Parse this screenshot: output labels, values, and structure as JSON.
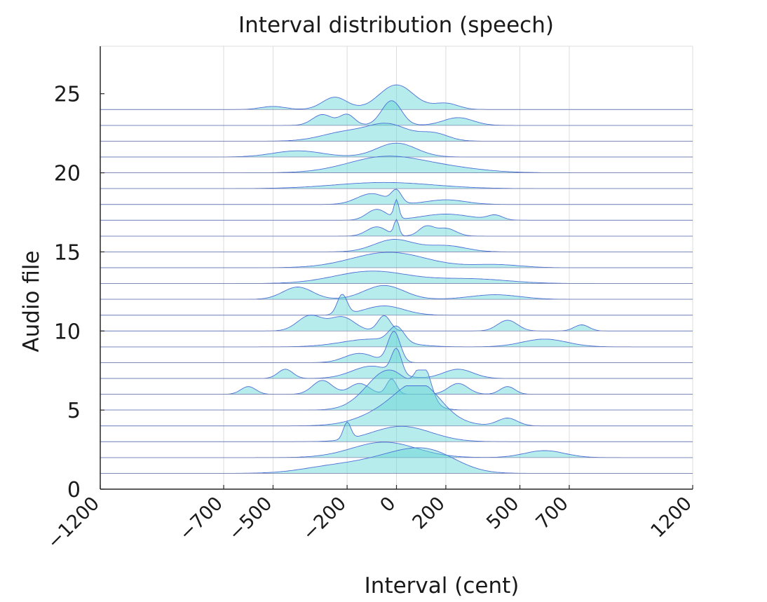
{
  "chart_data": {
    "type": "area",
    "subtype": "ridgeline",
    "title": "Interval distribution (speech)",
    "xlabel": "Interval (cent)",
    "ylabel": "Audio file",
    "xlim": [
      -1200,
      1200
    ],
    "ylim": [
      0,
      28
    ],
    "xticks": [
      -1200,
      -700,
      -500,
      -200,
      0,
      200,
      500,
      700,
      1200
    ],
    "xtick_labels": [
      "−1200",
      "−700",
      "−500",
      "−200",
      "0",
      "200",
      "500",
      "700",
      "1200"
    ],
    "yticks": [
      0,
      5,
      10,
      15,
      20,
      25
    ],
    "ytick_labels": [
      "0",
      "5",
      "10",
      "15",
      "20",
      "25"
    ],
    "grid": true,
    "fill_color": "#5fd4d4",
    "line_color": "#4a6fd6",
    "ridges": [
      {
        "file": 1,
        "peaks": [
          [
            0,
            130,
            1.0
          ],
          [
            150,
            110,
            1.0
          ],
          [
            -250,
            130,
            0.45
          ]
        ]
      },
      {
        "file": 2,
        "peaks": [
          [
            -50,
            130,
            1.0
          ],
          [
            600,
            80,
            0.45
          ]
        ]
      },
      {
        "file": 3,
        "peaks": [
          [
            -200,
            15,
            1.1
          ],
          [
            20,
            120,
            1.0
          ]
        ]
      },
      {
        "file": 4,
        "peaks": [
          [
            30,
            130,
            1.5
          ],
          [
            100,
            80,
            1.5
          ],
          [
            450,
            40,
            0.5
          ]
        ]
      },
      {
        "file": 5,
        "peaks": [
          [
            -30,
            90,
            2.6
          ],
          [
            110,
            30,
            2.2
          ]
        ]
      },
      {
        "file": 6,
        "peaks": [
          [
            -600,
            30,
            0.5
          ],
          [
            -300,
            40,
            0.9
          ],
          [
            -150,
            40,
            0.7
          ],
          [
            -20,
            20,
            1.0
          ],
          [
            250,
            40,
            0.7
          ],
          [
            450,
            30,
            0.5
          ]
        ]
      },
      {
        "file": 7,
        "peaks": [
          [
            -450,
            30,
            0.6
          ],
          [
            -100,
            80,
            0.8
          ],
          [
            0,
            20,
            1.6
          ],
          [
            250,
            60,
            0.6
          ]
        ]
      },
      {
        "file": 8,
        "peaks": [
          [
            -150,
            60,
            0.6
          ],
          [
            -10,
            25,
            2.0
          ]
        ]
      },
      {
        "file": 9,
        "peaks": [
          [
            -100,
            120,
            0.5
          ],
          [
            0,
            30,
            1.0
          ],
          [
            600,
            90,
            0.5
          ]
        ]
      },
      {
        "file": 10,
        "peaks": [
          [
            -350,
            50,
            1.0
          ],
          [
            -220,
            50,
            0.9
          ],
          [
            -50,
            25,
            1.0
          ],
          [
            450,
            40,
            0.7
          ],
          [
            750,
            30,
            0.4
          ]
        ]
      },
      {
        "file": 11,
        "peaks": [
          [
            -220,
            20,
            1.3
          ],
          [
            -50,
            80,
            0.6
          ]
        ]
      },
      {
        "file": 12,
        "peaks": [
          [
            -400,
            60,
            0.8
          ],
          [
            -50,
            80,
            0.9
          ],
          [
            400,
            100,
            0.3
          ]
        ]
      },
      {
        "file": 13,
        "peaks": [
          [
            -100,
            150,
            0.8
          ],
          [
            300,
            150,
            0.3
          ]
        ]
      },
      {
        "file": 14,
        "peaks": [
          [
            -30,
            150,
            1.0
          ],
          [
            400,
            100,
            0.2
          ]
        ]
      },
      {
        "file": 15,
        "peaks": [
          [
            -10,
            80,
            0.8
          ],
          [
            200,
            80,
            0.4
          ]
        ]
      },
      {
        "file": 16,
        "peaks": [
          [
            -80,
            40,
            0.6
          ],
          [
            0,
            10,
            1.0
          ],
          [
            120,
            30,
            0.6
          ],
          [
            200,
            40,
            0.5
          ]
        ]
      },
      {
        "file": 17,
        "peaks": [
          [
            -80,
            40,
            0.7
          ],
          [
            0,
            10,
            1.2
          ],
          [
            200,
            100,
            0.4
          ],
          [
            400,
            30,
            0.3
          ]
        ]
      },
      {
        "file": 18,
        "peaks": [
          [
            -100,
            60,
            0.7
          ],
          [
            0,
            20,
            0.8
          ],
          [
            200,
            80,
            0.3
          ]
        ]
      },
      {
        "file": 19,
        "peaks": [
          [
            -50,
            200,
            0.4
          ]
        ]
      },
      {
        "file": 20,
        "peaks": [
          [
            -50,
            150,
            1.0
          ],
          [
            200,
            150,
            0.3
          ]
        ]
      },
      {
        "file": 21,
        "peaks": [
          [
            -400,
            100,
            0.4
          ],
          [
            0,
            80,
            0.9
          ]
        ]
      },
      {
        "file": 22,
        "peaks": [
          [
            -200,
            100,
            0.6
          ],
          [
            -30,
            80,
            1.0
          ],
          [
            150,
            60,
            0.5
          ]
        ]
      },
      {
        "file": 23,
        "peaks": [
          [
            -300,
            40,
            0.7
          ],
          [
            -200,
            30,
            0.7
          ],
          [
            -20,
            40,
            1.6
          ],
          [
            250,
            60,
            0.5
          ]
        ]
      },
      {
        "file": 24,
        "peaks": [
          [
            -250,
            50,
            0.8
          ],
          [
            0,
            70,
            1.6
          ],
          [
            200,
            50,
            0.4
          ],
          [
            -500,
            50,
            0.2
          ]
        ]
      }
    ]
  }
}
